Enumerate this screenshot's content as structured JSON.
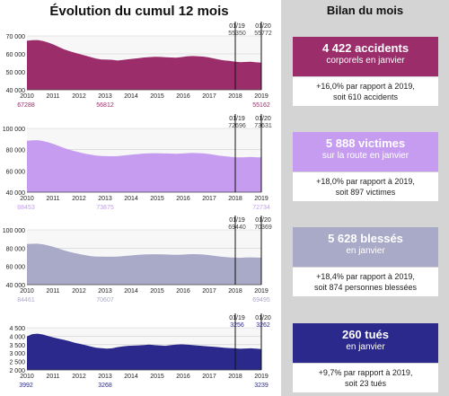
{
  "left_title": "Évolution du cumul 12 mois",
  "right_title": "Bilan du mois",
  "chart_data": [
    {
      "type": "area",
      "color": "#9b2d6b",
      "ylim": [
        40000,
        70000
      ],
      "y_ticks": [
        "70 000",
        "60 000",
        "50 000",
        "40 000"
      ],
      "y_tick_values": [
        70000,
        60000,
        50000,
        40000
      ],
      "x_ticks": [
        "2010",
        "2011",
        "2012",
        "2013",
        "2014",
        "2015",
        "2016",
        "2017",
        "2018",
        "2019"
      ],
      "series": [
        {
          "values": [
            67288,
            67600,
            67700,
            67200,
            66300,
            65200,
            63800,
            62500,
            61500,
            60600,
            59800,
            59000,
            58200,
            57400,
            56900,
            56812,
            56700,
            56300,
            56600,
            57000,
            57300,
            57600,
            58000,
            58200,
            58400,
            58300,
            58100,
            58000,
            57900,
            58200,
            58600,
            58800,
            58700,
            58500,
            58100,
            57500,
            56900,
            56400,
            56100,
            55700,
            55350,
            55500,
            55600,
            55300,
            55162
          ]
        }
      ],
      "marker_labels": [
        "01/19",
        "01/20"
      ],
      "marker_values": [
        "55350",
        "55772"
      ],
      "marker_years": [
        2018,
        2019
      ],
      "labels_below": [
        "67288",
        "56812",
        "55162"
      ]
    },
    {
      "type": "area",
      "color": "#c69cf0",
      "ylim": [
        40000,
        100000
      ],
      "y_ticks": [
        "100 000",
        "80 000",
        "60 000",
        "40 000"
      ],
      "y_tick_values": [
        100000,
        80000,
        60000,
        40000
      ],
      "x_ticks": [
        "2010",
        "2011",
        "2012",
        "2013",
        "2014",
        "2015",
        "2016",
        "2017",
        "2018",
        "2019"
      ],
      "series": [
        {
          "values": [
            88453,
            88800,
            88900,
            88200,
            86900,
            85300,
            83400,
            81500,
            79900,
            78500,
            77300,
            76200,
            75200,
            74400,
            74000,
            73875,
            73800,
            73900,
            74400,
            75000,
            75500,
            75900,
            76300,
            76500,
            76700,
            76600,
            76400,
            76300,
            76100,
            76300,
            76700,
            76900,
            76800,
            76500,
            76000,
            75300,
            74500,
            73900,
            73400,
            72900,
            72696,
            72900,
            73100,
            72900,
            72734
          ]
        }
      ],
      "marker_labels": [
        "01/19",
        "01/20"
      ],
      "marker_values": [
        "72696",
        "73631"
      ],
      "marker_years": [
        2018,
        2019
      ],
      "labels_below": [
        "88453",
        "73875",
        "72734"
      ]
    },
    {
      "type": "area",
      "color": "#a9a9c8",
      "ylim": [
        40000,
        100000
      ],
      "y_ticks": [
        "100 000",
        "80 000",
        "60 000",
        "40 000"
      ],
      "y_tick_values": [
        100000,
        80000,
        60000,
        40000
      ],
      "x_ticks": [
        "2010",
        "2011",
        "2012",
        "2013",
        "2014",
        "2015",
        "2016",
        "2017",
        "2018",
        "2019"
      ],
      "series": [
        {
          "values": [
            84461,
            84800,
            84900,
            84200,
            82900,
            81300,
            79400,
            77500,
            75900,
            74500,
            73300,
            72200,
            71300,
            70800,
            70650,
            70607,
            70600,
            70700,
            71200,
            71800,
            72300,
            72700,
            73000,
            73200,
            73300,
            73200,
            73000,
            72900,
            72700,
            72900,
            73200,
            73400,
            73300,
            73000,
            72500,
            71800,
            71000,
            70400,
            69900,
            69600,
            69440,
            69700,
            69900,
            69700,
            69495
          ]
        }
      ],
      "marker_labels": [
        "01/19",
        "01/20"
      ],
      "marker_values": [
        "69440",
        "70369"
      ],
      "marker_years": [
        2018,
        2019
      ],
      "labels_below": [
        "84461",
        "70607",
        "69495"
      ]
    },
    {
      "type": "area",
      "color": "#2b2a8c",
      "ylim": [
        2000,
        4500
      ],
      "y_ticks": [
        "4 500",
        "4 000",
        "3 500",
        "3 000",
        "2 500",
        "2 000"
      ],
      "y_tick_values": [
        4500,
        4000,
        3500,
        3000,
        2500,
        2000
      ],
      "x_ticks": [
        "2010",
        "2011",
        "2012",
        "2013",
        "2014",
        "2015",
        "2016",
        "2017",
        "2018",
        "2019"
      ],
      "series": [
        {
          "values": [
            3992,
            4120,
            4150,
            4100,
            4010,
            3920,
            3850,
            3780,
            3700,
            3610,
            3540,
            3470,
            3390,
            3320,
            3290,
            3268,
            3280,
            3350,
            3400,
            3430,
            3440,
            3460,
            3480,
            3500,
            3470,
            3450,
            3430,
            3470,
            3500,
            3520,
            3500,
            3480,
            3450,
            3420,
            3400,
            3380,
            3350,
            3320,
            3300,
            3280,
            3256,
            3270,
            3280,
            3260,
            3239
          ]
        }
      ],
      "marker_labels": [
        "01/19",
        "01/20"
      ],
      "marker_values": [
        "3256",
        "3262"
      ],
      "marker_years": [
        2018,
        2019
      ],
      "labels_below": [
        "3992",
        "3268",
        "3239"
      ]
    }
  ],
  "cards": [
    {
      "color": "#9b2d6b",
      "value": "4 422 accidents",
      "sub": "corporels en janvier",
      "line1": "+16,0% par rapport à 2019,",
      "line2": "soit 610 accidents"
    },
    {
      "color": "#c69cf0",
      "value": "5 888 victimes",
      "sub": "sur la route en janvier",
      "line1": "+18,0% par rapport à 2019,",
      "line2": "soit 897 victimes"
    },
    {
      "color": "#a9a9c8",
      "value": "5 628 blessés",
      "sub": "en janvier",
      "line1": "+18,4% par rapport à 2019,",
      "line2": "soit 874 personnes blessées"
    },
    {
      "color": "#2b2a8c",
      "value": "260 tués",
      "sub": "en janvier",
      "line1": "+9,7% par rapport à 2019,",
      "line2": "soit 23 tués"
    }
  ]
}
